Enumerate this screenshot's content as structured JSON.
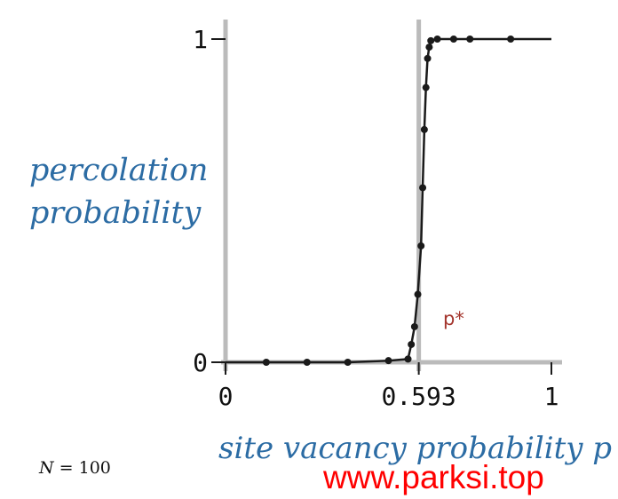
{
  "chart_data": {
    "type": "line",
    "ylabel": [
      "percolation",
      "probability"
    ],
    "xlabel": "site vacancy probability p",
    "x_ticks": [
      {
        "value": 0,
        "label": "0"
      },
      {
        "value": 0.593,
        "label": "0.593"
      },
      {
        "value": 1,
        "label": "1"
      }
    ],
    "y_ticks": [
      {
        "value": 0,
        "label": "0"
      },
      {
        "value": 1,
        "label": "1"
      }
    ],
    "xlim": [
      0,
      1
    ],
    "ylim": [
      0,
      1
    ],
    "threshold": {
      "x": 0.593,
      "label": "p*"
    },
    "annotation": {
      "n_symbol": "N",
      "n_rest": " = 100"
    },
    "series": [
      {
        "x": [
          0,
          0.125,
          0.25,
          0.375,
          0.5,
          0.56,
          0.57,
          0.58,
          0.59,
          0.6,
          0.605,
          0.61,
          0.615,
          0.62,
          0.625,
          0.63,
          0.65,
          0.7,
          0.75,
          0.875,
          1.0
        ],
        "y": [
          0,
          0,
          0,
          0,
          0.005,
          0.01,
          0.055,
          0.11,
          0.21,
          0.36,
          0.54,
          0.72,
          0.85,
          0.94,
          0.975,
          0.995,
          1,
          1,
          1,
          1,
          1
        ],
        "point_x": [
          0.125,
          0.25,
          0.375,
          0.5,
          0.56,
          0.57,
          0.58,
          0.59,
          0.6,
          0.605,
          0.61,
          0.615,
          0.62,
          0.625,
          0.63,
          0.65,
          0.7,
          0.75,
          0.875
        ],
        "point_y": [
          0,
          0,
          0,
          0.005,
          0.01,
          0.055,
          0.11,
          0.21,
          0.36,
          0.54,
          0.72,
          0.85,
          0.94,
          0.975,
          0.995,
          1,
          1,
          1,
          1
        ]
      }
    ],
    "colors": {
      "axis": "#bbbbbb",
      "curve": "#1a1a1a",
      "label": "#2c6ca4",
      "threshold_label": "#a4352d",
      "watermark": "#ff0000"
    }
  },
  "watermark": "www.parksi.top"
}
